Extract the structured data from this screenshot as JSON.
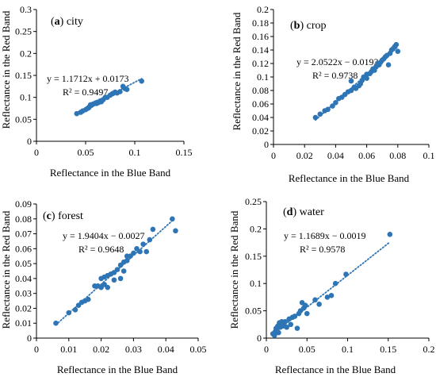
{
  "colors": {
    "marker": "#2E75B6",
    "trendline": "#2E75B6",
    "axis": "#000000",
    "grid": "none"
  },
  "chart_data": [
    {
      "type": "scatter",
      "panel_letter": "a",
      "panel_name": "city",
      "xlabel": "Reflectance in the Blue Band",
      "ylabel": "Reflectance in the Red Band",
      "xlim": [
        0,
        0.15
      ],
      "ylim": [
        0,
        0.3
      ],
      "xticks": [
        0,
        0.05,
        0.1,
        0.15
      ],
      "yticks": [
        0,
        0.05,
        0.1,
        0.15,
        0.2,
        0.25,
        0.3
      ],
      "x_tick_labels": [
        "0",
        "0.05",
        "0.1",
        "0.15"
      ],
      "y_tick_labels": [
        "0",
        "0.05",
        "0.1",
        "0.15",
        "0.2",
        "0.25",
        "0.3"
      ],
      "grid": false,
      "trendline": {
        "slope": 1.1712,
        "intercept": 0.0173,
        "x_range": [
          0.041,
          0.107
        ]
      },
      "equation": "y = 1.1712x + 0.0173",
      "r_squared": "R² = 0.9497",
      "x": [
        0.041,
        0.045,
        0.047,
        0.05,
        0.052,
        0.053,
        0.054,
        0.055,
        0.056,
        0.057,
        0.058,
        0.06,
        0.061,
        0.062,
        0.063,
        0.065,
        0.066,
        0.068,
        0.07,
        0.072,
        0.075,
        0.077,
        0.078,
        0.08,
        0.082,
        0.085,
        0.088,
        0.09,
        0.092,
        0.107
      ],
      "y": [
        0.063,
        0.066,
        0.069,
        0.072,
        0.075,
        0.076,
        0.079,
        0.083,
        0.082,
        0.084,
        0.085,
        0.087,
        0.086,
        0.089,
        0.088,
        0.092,
        0.09,
        0.095,
        0.1,
        0.1,
        0.105,
        0.108,
        0.109,
        0.112,
        0.11,
        0.113,
        0.125,
        0.12,
        0.118,
        0.137
      ]
    },
    {
      "type": "scatter",
      "panel_letter": "b",
      "panel_name": "crop",
      "xlabel": "Reflectance in the Blue Band",
      "ylabel": "Reflectance in the Red Band",
      "xlim": [
        0,
        0.1
      ],
      "ylim": [
        0,
        0.2
      ],
      "xticks": [
        0,
        0.02,
        0.04,
        0.06,
        0.08,
        0.1
      ],
      "yticks": [
        0,
        0.02,
        0.04,
        0.06,
        0.08,
        0.1,
        0.12,
        0.14,
        0.16,
        0.18,
        0.2
      ],
      "x_tick_labels": [
        "0",
        "0.02",
        "0.04",
        "0.06",
        "0.08",
        "0.1"
      ],
      "y_tick_labels": [
        "0",
        "0.02",
        "0.04",
        "0.06",
        "0.08",
        "0.1",
        "0.12",
        "0.14",
        "0.16",
        "0.18",
        "0.2"
      ],
      "grid": false,
      "trendline": {
        "slope": 2.0522,
        "intercept": -0.0193,
        "x_range": [
          0.027,
          0.08
        ]
      },
      "equation": "y = 2.0522x − 0.0193",
      "r_squared": "R² = 0.9738",
      "x": [
        0.027,
        0.03,
        0.033,
        0.035,
        0.038,
        0.04,
        0.042,
        0.044,
        0.046,
        0.048,
        0.05,
        0.05,
        0.052,
        0.053,
        0.055,
        0.056,
        0.057,
        0.058,
        0.06,
        0.06,
        0.062,
        0.063,
        0.064,
        0.065,
        0.066,
        0.067,
        0.068,
        0.069,
        0.07,
        0.071,
        0.072,
        0.073,
        0.074,
        0.075,
        0.076,
        0.077,
        0.078,
        0.079,
        0.08
      ],
      "y": [
        0.04,
        0.045,
        0.05,
        0.052,
        0.057,
        0.062,
        0.068,
        0.07,
        0.074,
        0.078,
        0.08,
        0.094,
        0.085,
        0.083,
        0.087,
        0.09,
        0.095,
        0.1,
        0.098,
        0.104,
        0.105,
        0.108,
        0.112,
        0.11,
        0.115,
        0.12,
        0.118,
        0.122,
        0.125,
        0.127,
        0.13,
        0.132,
        0.118,
        0.135,
        0.14,
        0.142,
        0.145,
        0.148,
        0.138
      ]
    },
    {
      "type": "scatter",
      "panel_letter": "c",
      "panel_name": "forest",
      "xlabel": "Reflectance in the Blue Band",
      "ylabel": "Reflectance in the Red Band",
      "xlim": [
        0,
        0.05
      ],
      "ylim": [
        0,
        0.09
      ],
      "xticks": [
        0,
        0.01,
        0.02,
        0.03,
        0.04,
        0.05
      ],
      "yticks": [
        0,
        0.01,
        0.02,
        0.03,
        0.04,
        0.05,
        0.06,
        0.07,
        0.08,
        0.09
      ],
      "x_tick_labels": [
        "0",
        "0.01",
        "0.02",
        "0.03",
        "0.04",
        "0.05"
      ],
      "y_tick_labels": [
        "0",
        "0.01",
        "0.02",
        "0.03",
        "0.04",
        "0.05",
        "0.06",
        "0.07",
        "0.08",
        "0.09"
      ],
      "grid": false,
      "trendline": {
        "slope": 1.9404,
        "intercept": -0.0027,
        "x_range": [
          0.006,
          0.042
        ]
      },
      "equation": "y = 1.9404x − 0.0027",
      "r_squared": "R² = 0.9648",
      "x": [
        0.006,
        0.01,
        0.012,
        0.013,
        0.014,
        0.015,
        0.016,
        0.018,
        0.019,
        0.02,
        0.02,
        0.021,
        0.021,
        0.022,
        0.022,
        0.023,
        0.024,
        0.024,
        0.025,
        0.026,
        0.026,
        0.027,
        0.027,
        0.028,
        0.028,
        0.029,
        0.03,
        0.031,
        0.032,
        0.033,
        0.034,
        0.035,
        0.036,
        0.042,
        0.043
      ],
      "y": [
        0.01,
        0.017,
        0.019,
        0.022,
        0.024,
        0.025,
        0.026,
        0.035,
        0.035,
        0.04,
        0.034,
        0.041,
        0.036,
        0.042,
        0.034,
        0.043,
        0.044,
        0.039,
        0.046,
        0.049,
        0.04,
        0.051,
        0.045,
        0.052,
        0.055,
        0.055,
        0.057,
        0.06,
        0.058,
        0.063,
        0.058,
        0.066,
        0.073,
        0.08,
        0.072
      ]
    },
    {
      "type": "scatter",
      "panel_letter": "d",
      "panel_name": "water",
      "xlabel": "Reflectance in the Blue Band",
      "ylabel": "Reflectance in the Red Band",
      "xlim": [
        0,
        0.2
      ],
      "ylim": [
        0,
        0.25
      ],
      "xticks": [
        0,
        0.05,
        0.1,
        0.15,
        0.2
      ],
      "yticks": [
        0,
        0.05,
        0.1,
        0.15,
        0.2,
        0.25
      ],
      "x_tick_labels": [
        "0",
        "0.05",
        "0.1",
        "0.15",
        "0.2"
      ],
      "y_tick_labels": [
        "0",
        "0.05",
        "0.1",
        "0.15",
        "0.2",
        "0.25"
      ],
      "grid": false,
      "trendline": {
        "slope": 1.1689,
        "intercept": -0.0019,
        "x_range": [
          0.008,
          0.152
        ]
      },
      "equation": "y = 1.1689x − 0.0019",
      "r_squared": "R² = 0.9578",
      "x": [
        0.008,
        0.01,
        0.011,
        0.012,
        0.013,
        0.014,
        0.015,
        0.016,
        0.017,
        0.018,
        0.019,
        0.02,
        0.022,
        0.023,
        0.025,
        0.028,
        0.03,
        0.032,
        0.035,
        0.038,
        0.04,
        0.042,
        0.044,
        0.046,
        0.048,
        0.05,
        0.06,
        0.065,
        0.075,
        0.08,
        0.085,
        0.098,
        0.152
      ],
      "y": [
        0.008,
        0.005,
        0.012,
        0.018,
        0.015,
        0.022,
        0.01,
        0.028,
        0.02,
        0.025,
        0.03,
        0.022,
        0.028,
        0.03,
        0.02,
        0.035,
        0.025,
        0.038,
        0.04,
        0.018,
        0.045,
        0.05,
        0.065,
        0.055,
        0.06,
        0.045,
        0.07,
        0.062,
        0.075,
        0.078,
        0.1,
        0.117,
        0.19
      ]
    }
  ]
}
